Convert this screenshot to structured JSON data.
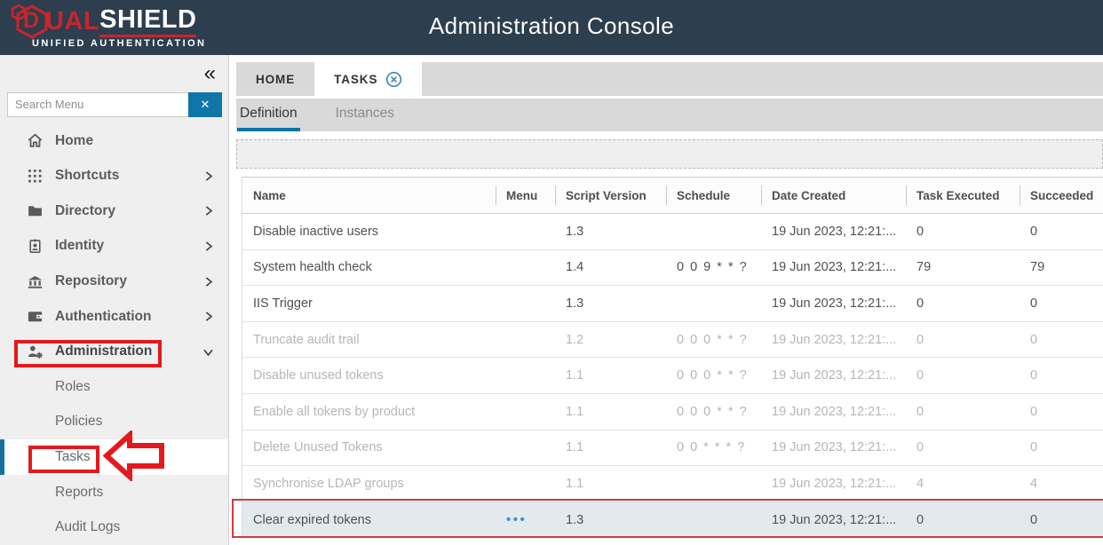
{
  "header": {
    "title": "Administration Console",
    "logo": {
      "brand_initial": "D",
      "brand_red": "UAL",
      "brand_white": "SHIELD",
      "tagline": "UNIFIED AUTHENTICATION"
    }
  },
  "sidebar": {
    "collapse_icon": "«",
    "search": {
      "placeholder": "Search Menu",
      "clear_glyph": "✕"
    },
    "items": [
      {
        "id": "home",
        "label": "Home",
        "icon": "home-icon"
      },
      {
        "id": "shortcuts",
        "label": "Shortcuts",
        "icon": "shortcuts-icon",
        "chevron": "right"
      },
      {
        "id": "directory",
        "label": "Directory",
        "icon": "directory-icon",
        "chevron": "right"
      },
      {
        "id": "identity",
        "label": "Identity",
        "icon": "identity-icon",
        "chevron": "right"
      },
      {
        "id": "repository",
        "label": "Repository",
        "icon": "repository-icon",
        "chevron": "right"
      },
      {
        "id": "authentication",
        "label": "Authentication",
        "icon": "authentication-icon",
        "chevron": "right"
      },
      {
        "id": "administration",
        "label": "Administration",
        "icon": "administration-icon",
        "chevron": "down",
        "bold": true,
        "children": [
          {
            "id": "roles",
            "label": "Roles"
          },
          {
            "id": "policies",
            "label": "Policies"
          },
          {
            "id": "tasks",
            "label": "Tasks",
            "active": true
          },
          {
            "id": "reports",
            "label": "Reports"
          },
          {
            "id": "audit-logs",
            "label": "Audit Logs"
          }
        ]
      }
    ]
  },
  "tabs": [
    {
      "id": "home",
      "label": "HOME"
    },
    {
      "id": "tasks",
      "label": "TASKS",
      "active": true,
      "closable": true
    }
  ],
  "subtabs": [
    {
      "id": "definition",
      "label": "Definition",
      "active": true
    },
    {
      "id": "instances",
      "label": "Instances"
    }
  ],
  "table": {
    "columns": [
      "Name",
      "Menu",
      "Script Version",
      "Schedule",
      "Date Created",
      "Task Executed",
      "Succeeded"
    ],
    "rows": [
      {
        "name": "Disable inactive users",
        "menu": "",
        "script_version": "1.3",
        "schedule": "",
        "date_created": "19 Jun 2023, 12:21:...",
        "task_executed": "0",
        "succeeded": "0",
        "state": "normal"
      },
      {
        "name": "System health check",
        "menu": "",
        "script_version": "1.4",
        "schedule": "0 0 9 * * ?",
        "date_created": "19 Jun 2023, 12:21:...",
        "task_executed": "79",
        "succeeded": "79",
        "state": "normal"
      },
      {
        "name": "IIS Trigger",
        "menu": "",
        "script_version": "1.3",
        "schedule": "",
        "date_created": "19 Jun 2023, 12:21:...",
        "task_executed": "0",
        "succeeded": "0",
        "state": "normal"
      },
      {
        "name": "Truncate audit trail",
        "menu": "",
        "script_version": "1.2",
        "schedule": "0 0 0 * * ?",
        "date_created": "19 Jun 2023, 12:21:...",
        "task_executed": "0",
        "succeeded": "0",
        "state": "disabled"
      },
      {
        "name": "Disable unused tokens",
        "menu": "",
        "script_version": "1.1",
        "schedule": "0 0 0 * * ?",
        "date_created": "19 Jun 2023, 12:21:...",
        "task_executed": "0",
        "succeeded": "0",
        "state": "disabled"
      },
      {
        "name": "Enable all tokens by product",
        "menu": "",
        "script_version": "1.1",
        "schedule": "0 0 0 * * ?",
        "date_created": "19 Jun 2023, 12:21:...",
        "task_executed": "0",
        "succeeded": "0",
        "state": "disabled"
      },
      {
        "name": "Delete Unused Tokens",
        "menu": "",
        "script_version": "1.1",
        "schedule": "0 0 * * * ?",
        "date_created": "19 Jun 2023, 12:21:...",
        "task_executed": "0",
        "succeeded": "0",
        "state": "disabled"
      },
      {
        "name": "Synchronise LDAP groups",
        "menu": "",
        "script_version": "1.1",
        "schedule": "",
        "date_created": "19 Jun 2023, 12:21:...",
        "task_executed": "4",
        "succeeded": "4",
        "state": "disabled"
      },
      {
        "name": "Clear expired tokens",
        "menu": "•••",
        "script_version": "1.3",
        "schedule": "",
        "date_created": "19 Jun 2023, 12:21:...",
        "task_executed": "0",
        "succeeded": "0",
        "state": "selected"
      }
    ]
  },
  "colors": {
    "header_bg": "#2d3e4e",
    "accent_blue": "#0e76a8",
    "brand_red": "#c6262c",
    "annotation_red": "#e3191d",
    "selected_row_bg": "#e3eaee"
  }
}
